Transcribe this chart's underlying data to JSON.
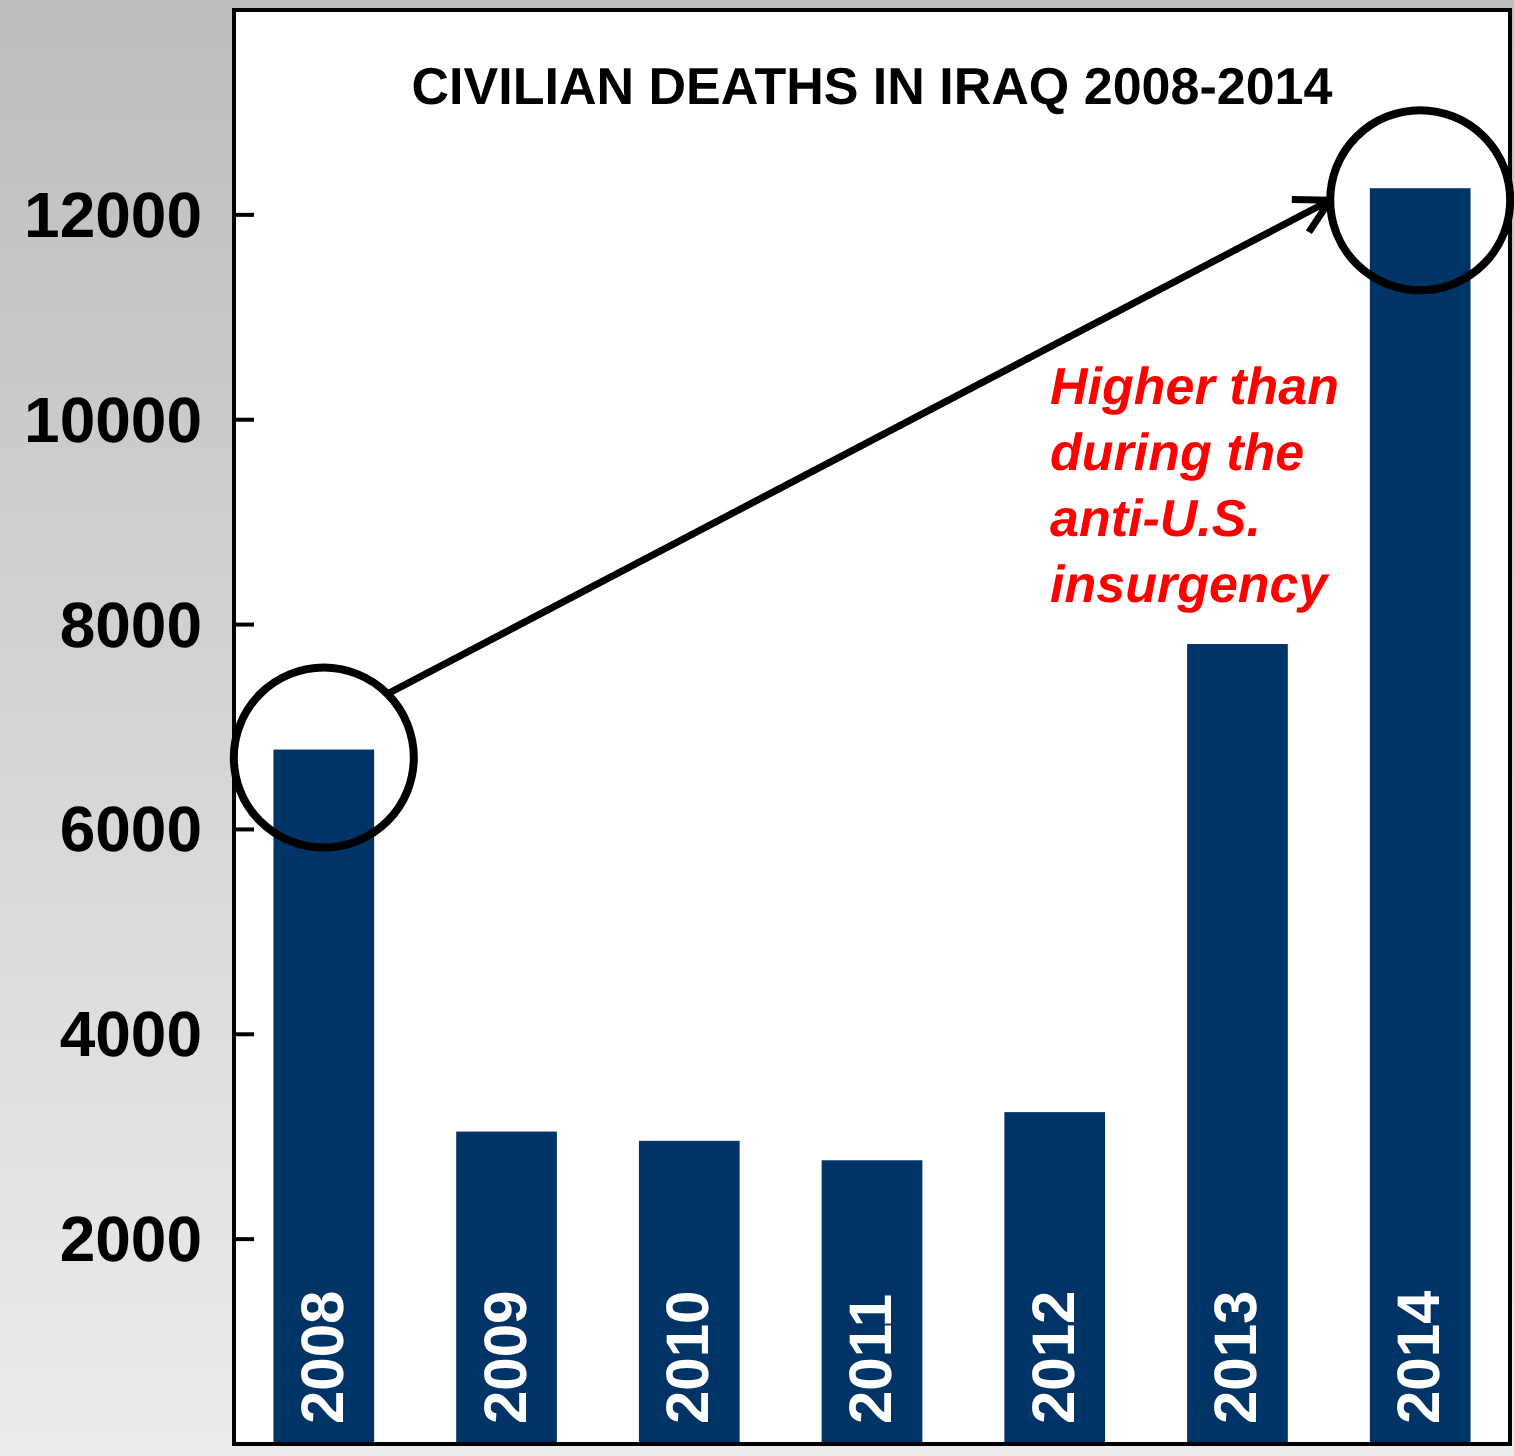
{
  "chart_data": {
    "type": "bar",
    "title": "CIVILIAN DEATHS IN IRAQ 2008-2014",
    "categories": [
      "2008",
      "2009",
      "2010",
      "2011",
      "2012",
      "2013",
      "2014"
    ],
    "values": [
      6780,
      3050,
      2960,
      2770,
      3240,
      7810,
      12260
    ],
    "color": "#003366",
    "ylim": [
      0,
      14000
    ],
    "yticks": [
      2000,
      4000,
      6000,
      8000,
      10000,
      12000
    ],
    "annotations": [
      "Higher than during the anti-U.S. insurgency"
    ]
  }
}
